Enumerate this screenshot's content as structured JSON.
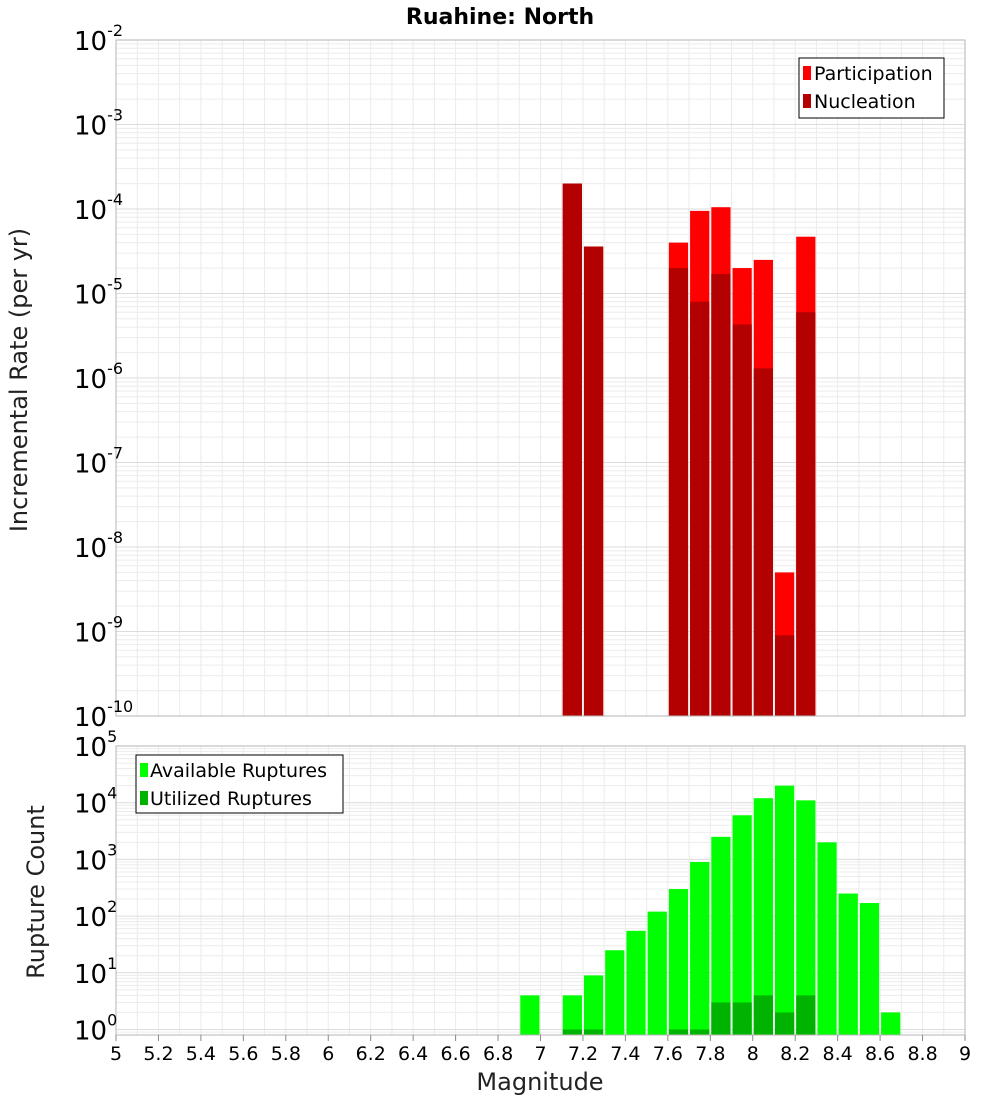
{
  "chart_data": [
    {
      "type": "bar",
      "title": "Ruahine: North",
      "xlabel": "",
      "ylabel": "Incremental Rate (per yr)",
      "yscale": "log",
      "xlim": [
        5,
        9
      ],
      "ylim": [
        1e-10,
        0.01
      ],
      "yticks": [
        {
          "base": "10",
          "exp": "-10"
        },
        {
          "base": "10",
          "exp": "-9"
        },
        {
          "base": "10",
          "exp": "-8"
        },
        {
          "base": "10",
          "exp": "-7"
        },
        {
          "base": "10",
          "exp": "-6"
        },
        {
          "base": "10",
          "exp": "-5"
        },
        {
          "base": "10",
          "exp": "-4"
        },
        {
          "base": "10",
          "exp": "-3"
        },
        {
          "base": "10",
          "exp": "-2"
        }
      ],
      "grid": true,
      "legend_position": "top-right",
      "bar_width": 0.1,
      "series": [
        {
          "name": "Participation",
          "color": "#ff0000",
          "x": [
            7.15,
            7.25,
            7.65,
            7.75,
            7.85,
            7.95,
            8.05,
            8.15,
            8.25
          ],
          "values": [
            0.0002,
            3.6e-05,
            4e-05,
            9.5e-05,
            0.000105,
            2e-05,
            2.5e-05,
            5e-09,
            4.7e-05
          ]
        },
        {
          "name": "Nucleation",
          "color": "#b30000",
          "x": [
            7.15,
            7.25,
            7.65,
            7.75,
            7.85,
            7.95,
            8.05,
            8.15,
            8.25
          ],
          "values": [
            0.0002,
            3.6e-05,
            2e-05,
            8e-06,
            1.7e-05,
            4.3e-06,
            1.3e-06,
            9e-10,
            6e-06
          ]
        }
      ]
    },
    {
      "type": "bar",
      "title": "",
      "xlabel": "Magnitude",
      "ylabel": "Rupture Count",
      "yscale": "log",
      "xlim": [
        5,
        9
      ],
      "ylim": [
        0.8,
        100000.0
      ],
      "xticks": [
        "5",
        "5.2",
        "5.4",
        "5.6",
        "5.8",
        "6",
        "6.2",
        "6.4",
        "6.6",
        "6.8",
        "7",
        "7.2",
        "7.4",
        "7.6",
        "7.8",
        "8",
        "8.2",
        "8.4",
        "8.6",
        "8.8",
        "9"
      ],
      "yticks": [
        {
          "base": "10",
          "exp": "0"
        },
        {
          "base": "10",
          "exp": "1"
        },
        {
          "base": "10",
          "exp": "2"
        },
        {
          "base": "10",
          "exp": "3"
        },
        {
          "base": "10",
          "exp": "4"
        },
        {
          "base": "10",
          "exp": "5"
        }
      ],
      "grid": true,
      "legend_position": "top-left",
      "bar_width": 0.1,
      "series": [
        {
          "name": "Available Ruptures",
          "color": "#00ff00",
          "x": [
            6.95,
            7.15,
            7.25,
            7.35,
            7.45,
            7.55,
            7.65,
            7.75,
            7.85,
            7.95,
            8.05,
            8.15,
            8.25,
            8.35,
            8.45,
            8.55,
            8.65
          ],
          "values": [
            4,
            4,
            9,
            25,
            55,
            120,
            300,
            900,
            2500,
            6000,
            12000,
            20000,
            11000,
            2000,
            250,
            170,
            2
          ]
        },
        {
          "name": "Utilized Ruptures",
          "color": "#00b300",
          "x": [
            7.15,
            7.25,
            7.65,
            7.75,
            7.85,
            7.95,
            8.05,
            8.15,
            8.25
          ],
          "values": [
            1,
            1,
            1,
            1,
            3,
            3,
            4,
            2,
            4
          ]
        }
      ]
    }
  ]
}
